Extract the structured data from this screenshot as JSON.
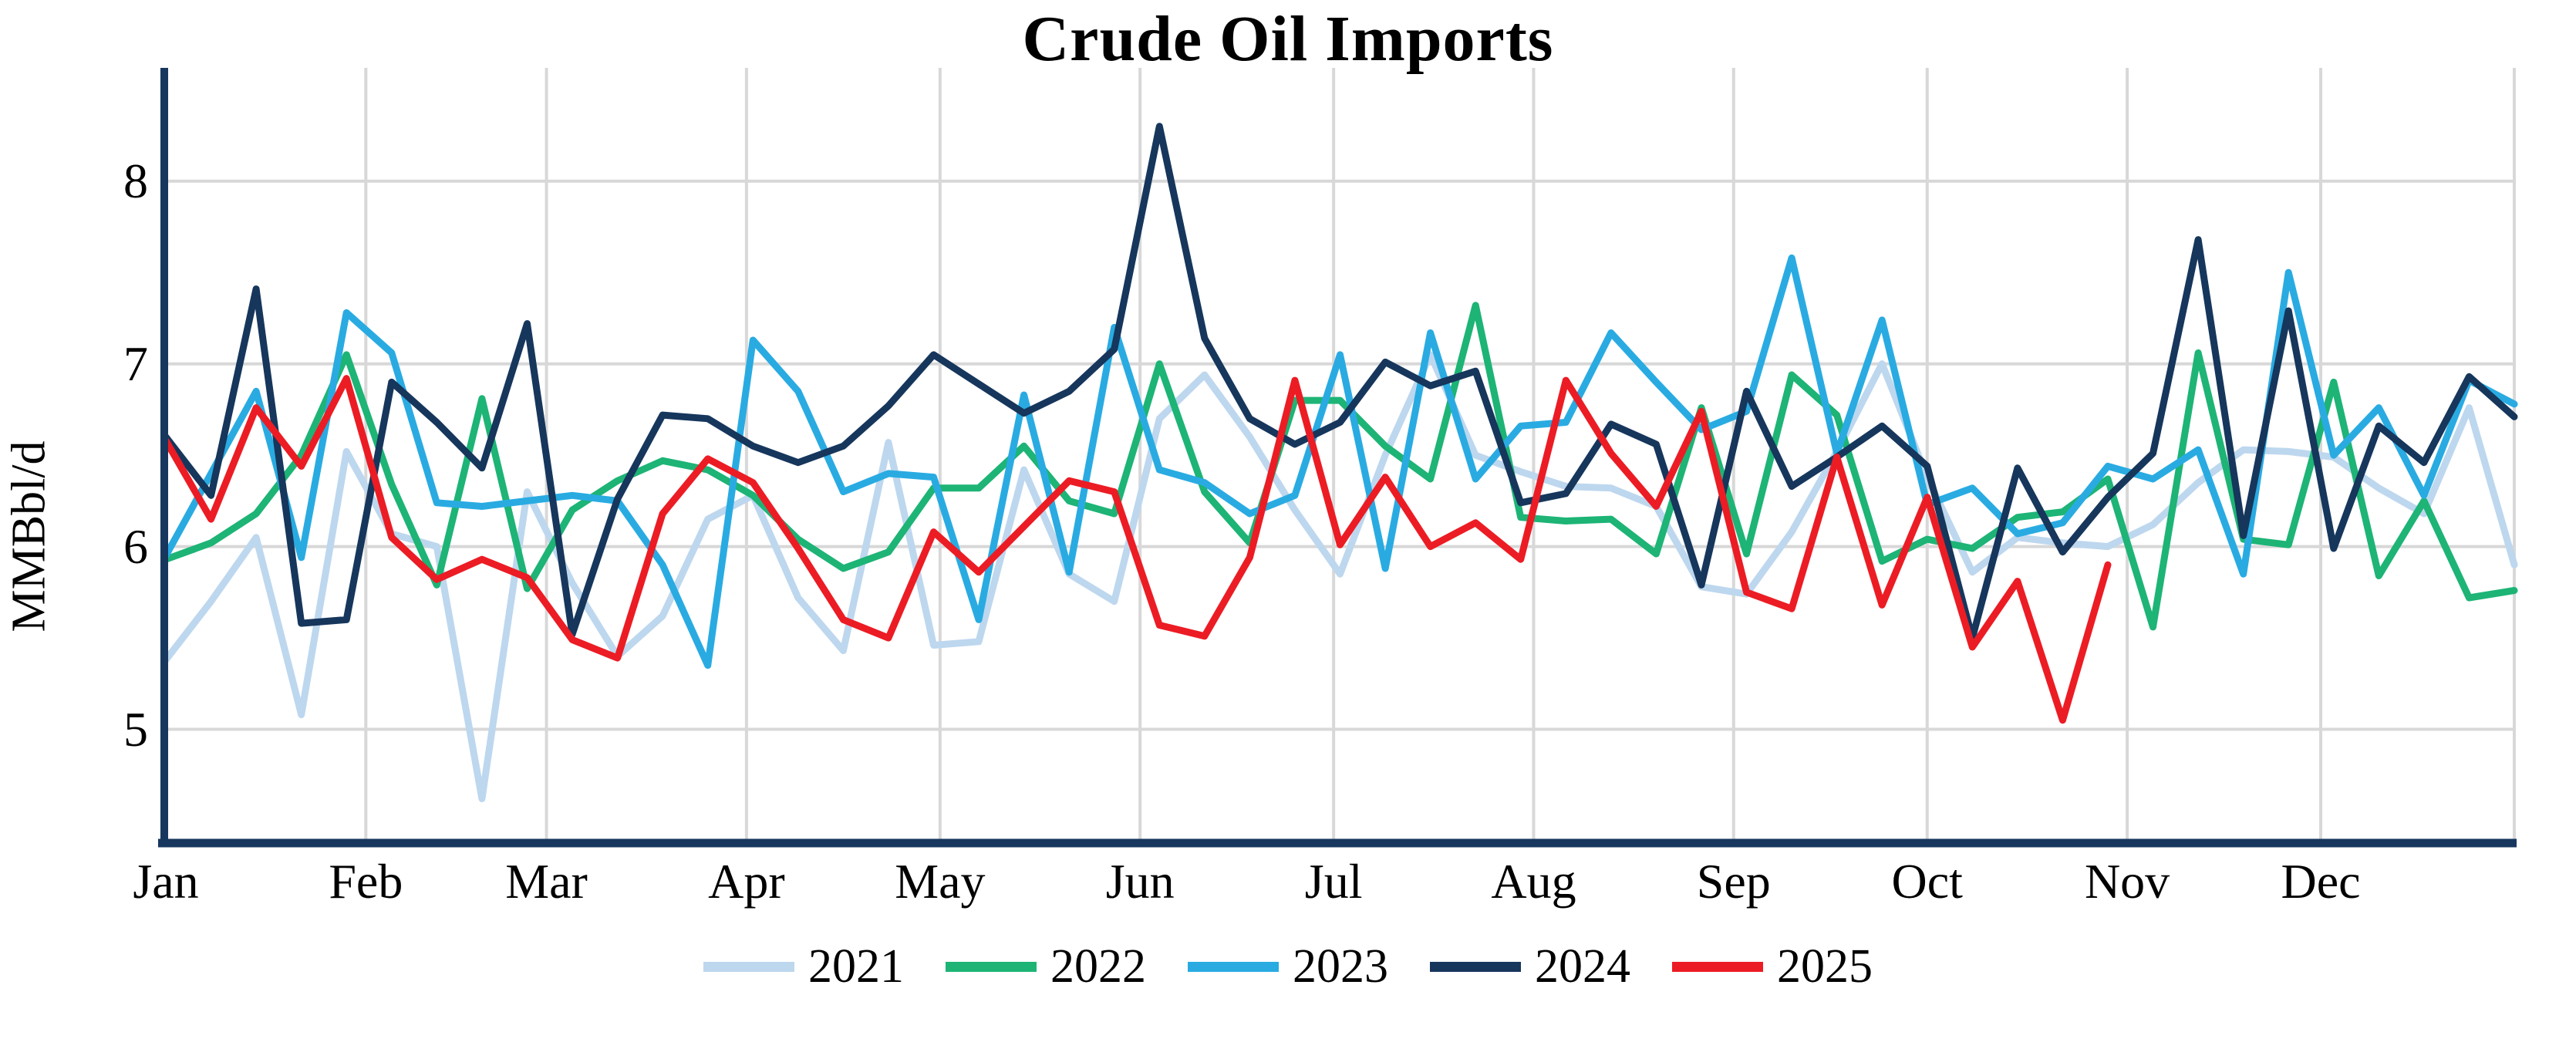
{
  "title": "Crude Oil Imports",
  "colors": {
    "axis": "#17375E",
    "gridline": "#D8D8D8",
    "text": "#000000",
    "background": "#FFFFFF"
  },
  "chart_data": {
    "type": "line",
    "title": "Crude Oil Imports",
    "xlabel": "",
    "ylabel": "MMBbl/d",
    "y_ticks": [
      5,
      6,
      7,
      8
    ],
    "ylim": [
      4.39,
      8.62
    ],
    "grid": true,
    "legend_position": "bottom",
    "x_unit": "weekly",
    "x_tick_labels": [
      "Jan",
      "Feb",
      "Mar",
      "Apr",
      "May",
      "Jun",
      "Jul",
      "Aug",
      "Sep",
      "Oct",
      "Nov",
      "Dec"
    ],
    "month_start_days": [
      0,
      31,
      59,
      90,
      120,
      151,
      181,
      212,
      243,
      273,
      304,
      334
    ],
    "days_per_year": 364,
    "points_per_full_year": 53,
    "series": [
      {
        "name": "2021",
        "color": "#BDD7EE",
        "values": [
          5.38,
          5.7,
          6.05,
          5.08,
          6.52,
          6.07,
          6.0,
          4.62,
          6.3,
          5.8,
          5.4,
          5.62,
          6.15,
          6.28,
          5.72,
          5.43,
          6.57,
          5.46,
          5.48,
          6.42,
          5.85,
          5.7,
          6.7,
          6.94,
          6.6,
          6.2,
          5.85,
          6.5,
          7.05,
          6.5,
          6.41,
          6.33,
          6.32,
          6.22,
          5.78,
          5.74,
          6.08,
          6.52,
          7.0,
          6.38,
          5.86,
          6.05,
          6.02,
          6.0,
          6.12,
          6.35,
          6.53,
          6.52,
          6.49,
          6.32,
          6.18,
          6.76,
          5.9
        ]
      },
      {
        "name": "2022",
        "color": "#1DB476",
        "values": [
          5.93,
          6.02,
          6.18,
          6.5,
          7.05,
          6.34,
          5.79,
          6.81,
          5.77,
          6.2,
          6.36,
          6.47,
          6.42,
          6.28,
          6.04,
          5.88,
          5.97,
          6.32,
          6.32,
          6.55,
          6.25,
          6.18,
          7.0,
          6.3,
          6.02,
          6.8,
          6.8,
          6.55,
          6.37,
          7.32,
          6.16,
          6.14,
          6.15,
          5.96,
          6.76,
          5.96,
          6.94,
          6.72,
          5.92,
          6.04,
          5.99,
          6.16,
          6.19,
          6.37,
          5.56,
          7.06,
          6.04,
          6.01,
          6.9,
          5.84,
          6.25,
          5.72,
          5.76
        ]
      },
      {
        "name": "2023",
        "color": "#29ABE2",
        "values": [
          5.95,
          6.4,
          6.85,
          5.94,
          7.28,
          7.06,
          6.24,
          6.22,
          6.25,
          6.28,
          6.25,
          5.9,
          5.35,
          7.13,
          6.85,
          6.3,
          6.4,
          6.38,
          5.6,
          6.83,
          5.86,
          7.2,
          6.42,
          6.35,
          6.18,
          6.28,
          7.05,
          5.88,
          7.17,
          6.37,
          6.66,
          6.68,
          7.17,
          6.9,
          6.64,
          6.74,
          7.58,
          6.51,
          7.24,
          6.23,
          6.32,
          6.07,
          6.13,
          6.44,
          6.37,
          6.53,
          5.85,
          7.5,
          6.5,
          6.76,
          6.28,
          6.91,
          6.78
        ]
      },
      {
        "name": "2024",
        "color": "#16365C",
        "values": [
          6.6,
          6.28,
          7.41,
          5.58,
          5.6,
          6.9,
          6.68,
          6.43,
          7.22,
          5.52,
          6.26,
          6.72,
          6.7,
          6.55,
          6.46,
          6.55,
          6.77,
          7.05,
          6.89,
          6.73,
          6.85,
          7.08,
          8.3,
          7.14,
          6.7,
          6.56,
          6.68,
          7.01,
          6.88,
          6.96,
          6.24,
          6.29,
          6.67,
          6.56,
          5.79,
          6.85,
          6.33,
          6.49,
          6.66,
          6.44,
          5.5,
          6.43,
          5.97,
          6.27,
          6.51,
          7.68,
          6.06,
          7.29,
          5.99,
          6.66,
          6.46,
          6.93,
          6.71
        ]
      },
      {
        "name": "2025",
        "color": "#EC1C24",
        "values": [
          6.58,
          6.15,
          6.76,
          6.44,
          6.92,
          6.05,
          5.82,
          5.93,
          5.83,
          5.49,
          5.39,
          6.18,
          6.48,
          6.35,
          5.99,
          5.6,
          5.5,
          6.08,
          5.86,
          6.11,
          6.36,
          6.3,
          5.57,
          5.51,
          5.94,
          6.91,
          6.01,
          6.38,
          6.0,
          6.13,
          5.93,
          6.91,
          6.51,
          6.22,
          6.74,
          5.75,
          5.66,
          6.49,
          5.68,
          6.27,
          5.45,
          5.81,
          5.05,
          5.9
        ]
      }
    ]
  }
}
